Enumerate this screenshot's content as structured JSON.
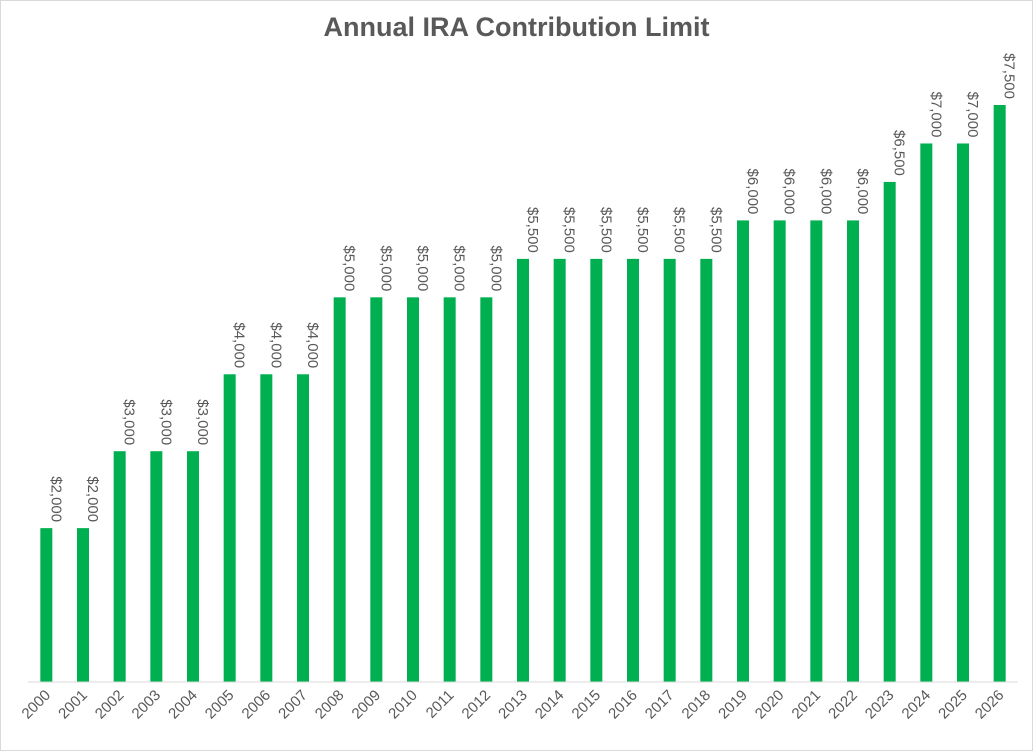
{
  "chart_data": {
    "type": "bar",
    "title": "Annual IRA Contribution Limit",
    "xlabel": "",
    "ylabel": "",
    "ylim": [
      0,
      7500
    ],
    "grid": false,
    "bar_color": "#00b050",
    "categories": [
      "2000",
      "2001",
      "2002",
      "2003",
      "2004",
      "2005",
      "2006",
      "2007",
      "2008",
      "2009",
      "2010",
      "2011",
      "2012",
      "2013",
      "2014",
      "2015",
      "2016",
      "2017",
      "2018",
      "2019",
      "2020",
      "2021",
      "2022",
      "2023",
      "2024",
      "2025",
      "2026"
    ],
    "values": [
      2000,
      2000,
      3000,
      3000,
      3000,
      4000,
      4000,
      4000,
      5000,
      5000,
      5000,
      5000,
      5000,
      5500,
      5500,
      5500,
      5500,
      5500,
      5500,
      6000,
      6000,
      6000,
      6000,
      6500,
      7000,
      7000,
      7500
    ],
    "data_labels": [
      "$2,000",
      "$2,000",
      "$3,000",
      "$3,000",
      "$3,000",
      "$4,000",
      "$4,000",
      "$4,000",
      "$5,000",
      "$5,000",
      "$5,000",
      "$5,000",
      "$5,000",
      "$5,500",
      "$5,500",
      "$5,500",
      "$5,500",
      "$5,500",
      "$5,500",
      "$6,000",
      "$6,000",
      "$6,000",
      "$6,000",
      "$6,500",
      "$7,000",
      "$7,000",
      "$7,500"
    ]
  }
}
